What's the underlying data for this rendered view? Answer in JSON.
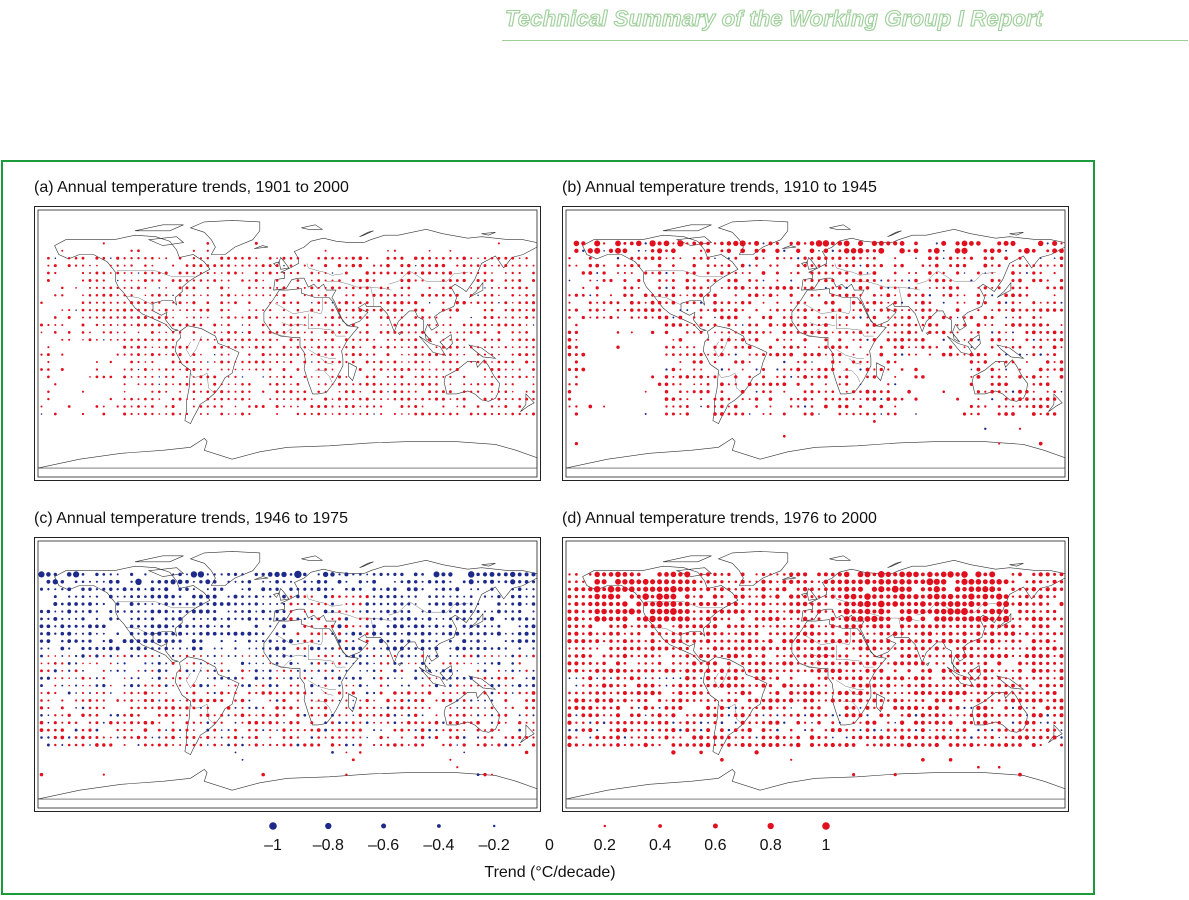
{
  "header": {
    "title": "Technical Summary of the Working Group I Report"
  },
  "colors": {
    "warming": "#e0101e",
    "cooling": "#1e2a8a",
    "frame": "#1a9b3c",
    "header": "#9ecf9a"
  },
  "panels": [
    {
      "id": "a",
      "title": "(a) Annual temperature trends, 1901 to 2000"
    },
    {
      "id": "b",
      "title": "(b) Annual temperature trends, 1910 to 1945"
    },
    {
      "id": "c",
      "title": "(c) Annual temperature trends, 1946 to 1975"
    },
    {
      "id": "d",
      "title": "(d) Annual temperature trends, 1976 to 2000"
    }
  ],
  "legend": {
    "title": "Trend (°C/decade)",
    "entries": [
      {
        "label": "–1",
        "value": -1
      },
      {
        "label": "–0.8",
        "value": -0.8
      },
      {
        "label": "–0.6",
        "value": -0.6
      },
      {
        "label": "–0.4",
        "value": -0.4
      },
      {
        "label": "–0.2",
        "value": -0.2
      },
      {
        "label": "0",
        "value": 0
      },
      {
        "label": "0.2",
        "value": 0.2
      },
      {
        "label": "0.4",
        "value": 0.4
      },
      {
        "label": "0.6",
        "value": 0.6
      },
      {
        "label": "0.8",
        "value": 0.8
      },
      {
        "label": "1",
        "value": 1
      }
    ]
  }
}
